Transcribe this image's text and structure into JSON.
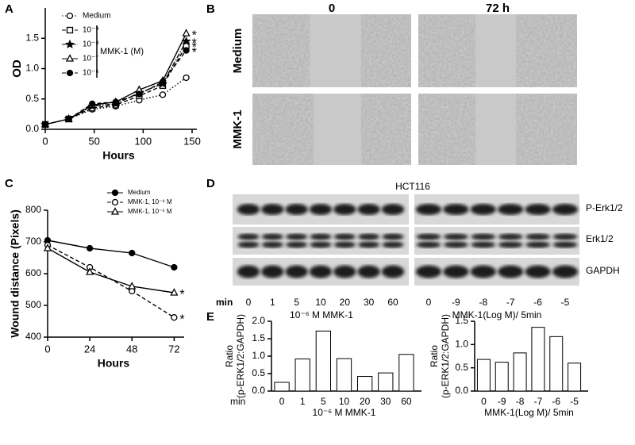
{
  "panel_labels": [
    "A",
    "B",
    "C",
    "D",
    "E"
  ],
  "chart_data": [
    {
      "type": "line",
      "ylabel": "OD",
      "xlabel": "Hours",
      "x": [
        0,
        24,
        48,
        72,
        96,
        120,
        144
      ],
      "xlim": [
        0,
        150
      ],
      "xticks": [
        0,
        50,
        100,
        150
      ],
      "ylim": [
        0,
        2.0
      ],
      "yticks": [
        {
          "value": 0,
          "label": "0.0"
        },
        0.5,
        {
          "value": 1,
          "label": "1.0"
        },
        1.5
      ],
      "legend_group": "MMK-1 (M)",
      "annotations": [
        "*",
        "*",
        "*",
        "*"
      ],
      "series": [
        {
          "name": "Medium",
          "color": "#000",
          "marker": "circle-open",
          "linestyle": "dotted",
          "values": [
            0.08,
            0.17,
            0.33,
            0.38,
            0.48,
            0.57,
            0.85
          ]
        },
        {
          "name": "10⁻⁹",
          "color": "#000",
          "marker": "square-open",
          "linestyle": "dashed",
          "values": [
            0.08,
            0.17,
            0.35,
            0.4,
            0.55,
            0.72,
            1.38
          ]
        },
        {
          "name": "10⁻⁸",
          "color": "#000",
          "marker": "star",
          "linestyle": "dashdot",
          "values": [
            0.08,
            0.17,
            0.38,
            0.42,
            0.6,
            0.75,
            1.45
          ]
        },
        {
          "name": "10⁻⁷",
          "color": "#000",
          "marker": "triangle-open",
          "linestyle": "solid",
          "values": [
            0.08,
            0.17,
            0.4,
            0.45,
            0.65,
            0.8,
            1.58
          ]
        },
        {
          "name": "10⁻⁶",
          "color": "#000",
          "marker": "circle",
          "linestyle": "dashed",
          "values": [
            0.08,
            0.17,
            0.42,
            0.45,
            0.58,
            0.78,
            1.3
          ]
        }
      ]
    },
    {
      "type": "line",
      "ylabel": "Wound distance (Pixels)",
      "xlabel": "Hours",
      "x": [
        0,
        24,
        48,
        72
      ],
      "xlim": [
        0,
        75
      ],
      "xticks": [
        0,
        24,
        48,
        72
      ],
      "ylim": [
        400,
        800
      ],
      "yticks": [
        400,
        500,
        600,
        700,
        800
      ],
      "annotations": [
        "*",
        "*"
      ],
      "series": [
        {
          "name": "Medium",
          "color": "#000",
          "marker": "circle",
          "linestyle": "solid",
          "values": [
            705,
            680,
            665,
            620
          ]
        },
        {
          "name": "MMK-1, 10⁻⁸ M",
          "color": "#000",
          "marker": "circle-open",
          "linestyle": "dashed",
          "values": [
            690,
            620,
            545,
            462
          ]
        },
        {
          "name": "MMK-1, 10⁻⁶ M",
          "color": "#000",
          "marker": "triangle-open",
          "linestyle": "solid",
          "values": [
            680,
            605,
            560,
            540
          ]
        }
      ]
    },
    {
      "type": "bar",
      "ylabel": [
        "Ratio",
        "(p-ERK1/2:GAPDH)"
      ],
      "x_prefix": "min",
      "xlabel": "10⁻⁶ M  MMK-1",
      "color": "#000",
      "categories": [
        "0",
        "1",
        "5",
        "10",
        "20",
        "30",
        "60"
      ],
      "values": [
        0.25,
        0.92,
        1.72,
        0.93,
        0.42,
        0.52,
        1.05
      ],
      "ylim": [
        0,
        2
      ],
      "yticks": [
        {
          "value": 0,
          "label": "0.0"
        },
        0.5,
        {
          "value": 1,
          "label": "1.0"
        },
        1.5,
        {
          "value": 2,
          "label": "2.0"
        }
      ]
    },
    {
      "type": "bar",
      "ylabel": [
        "Ratio",
        "(p-ERK1/2:GAPDH)"
      ],
      "xlabel": "MMK-1(Log M)/ 5min",
      "color": "#000",
      "categories": [
        "0",
        "-9",
        "-8",
        "-7",
        "-6",
        "-5"
      ],
      "values": [
        0.68,
        0.62,
        0.82,
        1.37,
        1.17,
        0.6
      ],
      "ylim": [
        0,
        1.5
      ],
      "yticks": [
        {
          "value": 0,
          "label": "0.0"
        },
        0.5,
        {
          "value": 1,
          "label": "1.0"
        },
        1.5
      ]
    }
  ],
  "migration": {
    "columns": [
      "0",
      "72 h"
    ],
    "rows": [
      "Medium",
      "MMK-1"
    ]
  },
  "blot": {
    "title": "HCT116",
    "bands": [
      "P-Erk1/2",
      "Erk1/2",
      "GAPDH"
    ],
    "axis_label": "min",
    "left": {
      "lanes": [
        "0",
        "1",
        "5",
        "10",
        "20",
        "30",
        "60"
      ],
      "label": "10⁻⁶ M  MMK-1"
    },
    "right": {
      "lanes": [
        "0",
        "-9",
        "-8",
        "-7",
        "-6",
        "-5"
      ],
      "label": "MMK-1(Log M)/ 5min"
    }
  }
}
